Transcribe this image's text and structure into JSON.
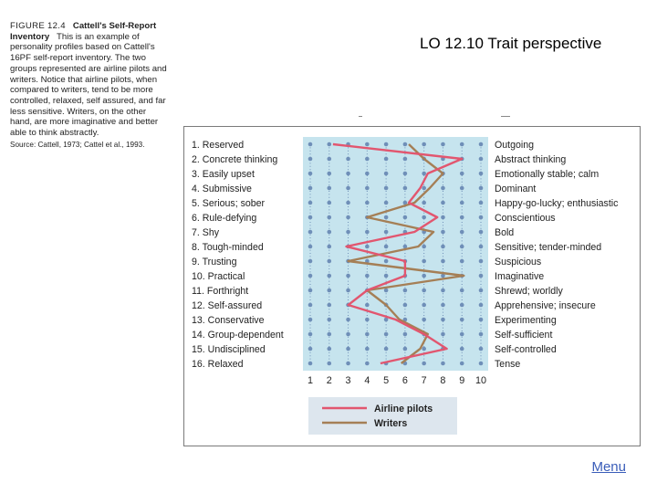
{
  "slide": {
    "title": "LO 12.10  Trait perspective",
    "menu_label": "Menu"
  },
  "caption": {
    "figure_label": "FIGURE 12.4",
    "figure_title": "Cattell's Self-Report Inventory",
    "body": "This is an example of personality profiles based on Cattell's 16PF self-report inventory. The two groups represented are airline pilots and writers. Notice that airline pilots, when compared to writers, tend to be more controlled, relaxed, self assured, and far less sensitive. Writers, on the other hand, are more imaginative and better able to think abstractly.",
    "source": "Source: Cattell, 1973; Cattel et al., 1993."
  },
  "colors": {
    "pilots": "#e2566f",
    "writers": "#a57f56",
    "band": "#c6e4ee",
    "dot": "#6f8fb8",
    "legend_bg": "#dde6ee"
  },
  "chart_data": {
    "type": "line",
    "orientation": "horizontal-profile",
    "traits_low": [
      "1. Reserved",
      "2. Concrete thinking",
      "3. Easily upset",
      "4. Submissive",
      "5. Serious; sober",
      "6. Rule-defying",
      "7. Shy",
      "8. Tough-minded",
      "9. Trusting",
      "10. Practical",
      "11. Forthright",
      "12. Self-assured",
      "13. Conservative",
      "14. Group-dependent",
      "15. Undisciplined",
      "16. Relaxed"
    ],
    "traits_high": [
      "Outgoing",
      "Abstract thinking",
      "Emotionally stable; calm",
      "Dominant",
      "Happy-go-lucky; enthusiastic",
      "Conscientious",
      "Bold",
      "Sensitive; tender-minded",
      "Suspicious",
      "Imaginative",
      "Shrewd; worldly",
      "Apprehensive; insecure",
      "Experimenting",
      "Self-sufficient",
      "Self-controlled",
      "Tense"
    ],
    "scale": [
      "1",
      "2",
      "3",
      "4",
      "5",
      "6",
      "7",
      "8",
      "9",
      "10"
    ],
    "xlim": [
      1,
      10
    ],
    "legend_placement": "bottom",
    "series": [
      {
        "name": "Airline pilots",
        "values": [
          2.2,
          9.0,
          7.2,
          6.8,
          6.2,
          7.7,
          6.5,
          2.9,
          6.0,
          6.0,
          4.0,
          3.0,
          5.5,
          7.0,
          8.2,
          4.7
        ]
      },
      {
        "name": "Writers",
        "values": [
          6.2,
          7.0,
          8.0,
          7.3,
          6.5,
          4.0,
          7.5,
          6.7,
          3.0,
          9.1,
          4.0,
          5.0,
          5.7,
          7.2,
          6.8,
          5.8
        ]
      }
    ]
  }
}
